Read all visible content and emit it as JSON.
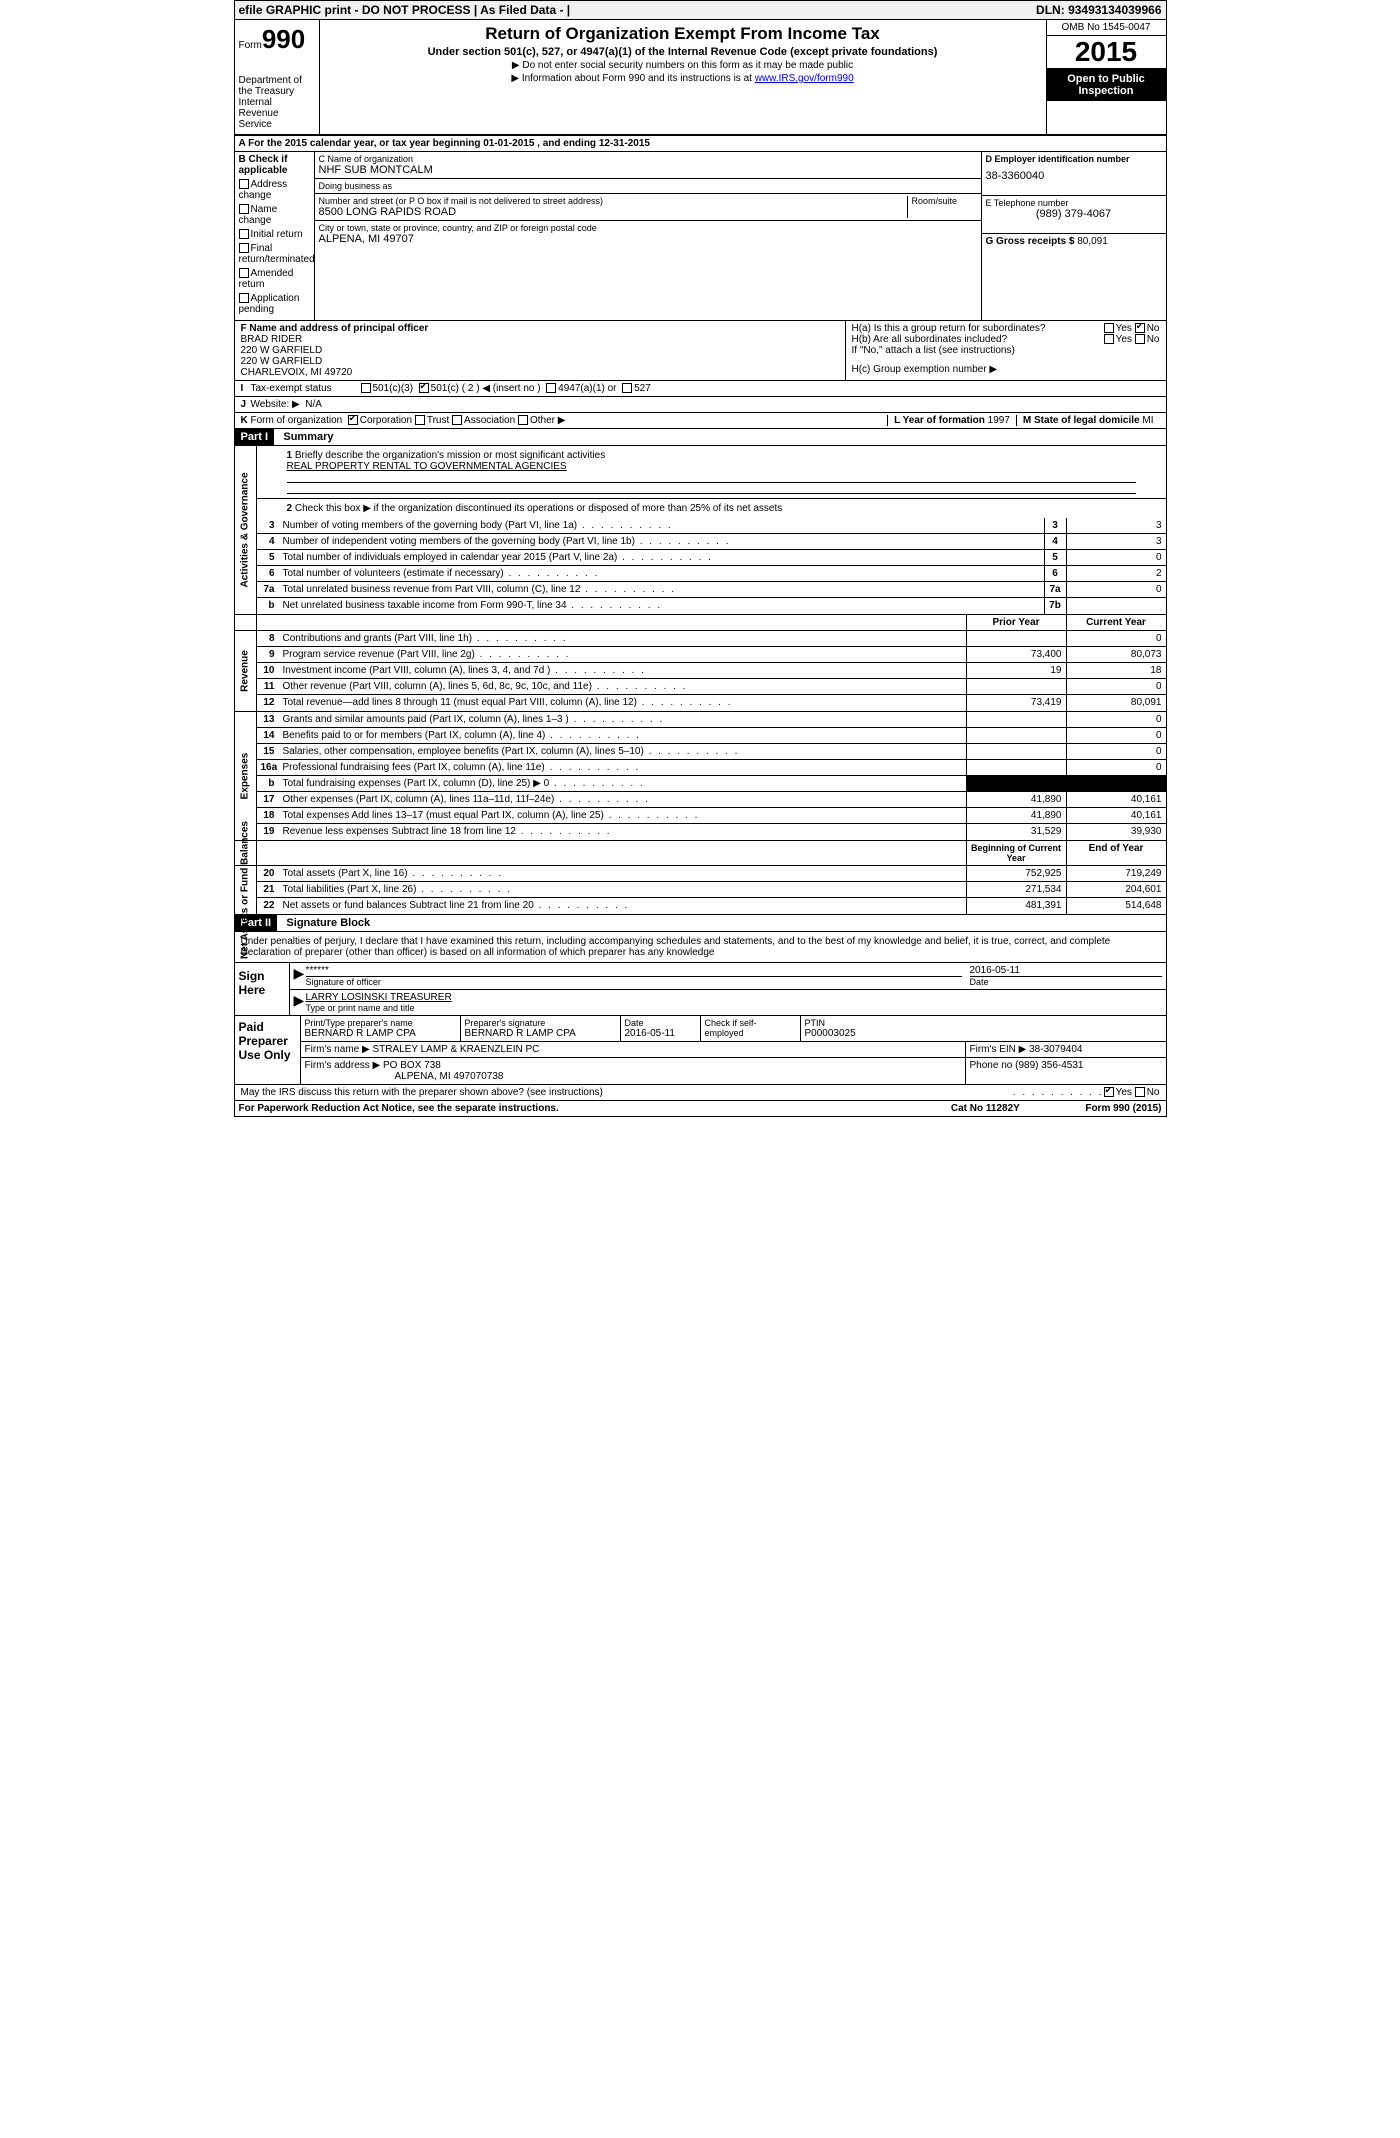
{
  "topbar": {
    "left": "efile GRAPHIC print - DO NOT PROCESS | As Filed Data - |",
    "dln_label": "DLN:",
    "dln": "93493134039966"
  },
  "header": {
    "form_word": "Form",
    "form_num": "990",
    "dept1": "Department of the Treasury",
    "dept2": "Internal Revenue Service",
    "title": "Return of Organization Exempt From Income Tax",
    "subtitle": "Under section 501(c), 527, or 4947(a)(1) of the Internal Revenue Code (except private foundations)",
    "note1": "▶ Do not enter social security numbers on this form as it may be made public",
    "note2_a": "▶ Information about Form 990 and its instructions is at ",
    "note2_link": "www.IRS.gov/form990",
    "omb": "OMB No 1545-0047",
    "year": "2015",
    "inspect": "Open to Public Inspection"
  },
  "rowA": "A  For the 2015 calendar year, or tax year beginning 01-01-2015    , and ending 12-31-2015",
  "chkB": {
    "title": "B Check if applicable",
    "items": [
      "Address change",
      "Name change",
      "Initial return",
      "Final return/terminated",
      "Amended return",
      "Application pending"
    ]
  },
  "boxC": {
    "lab_name": "C Name of organization",
    "name": "NHF SUB MONTCALM",
    "dba_lab": "Doing business as",
    "dba": "",
    "street_lab": "Number and street (or P O  box if mail is not delivered to street address)",
    "room_lab": "Room/suite",
    "street": "8500 LONG RAPIDS ROAD",
    "city_lab": "City or town, state or province, country, and ZIP or foreign postal code",
    "city": "ALPENA, MI  49707"
  },
  "boxD": {
    "lab": "D Employer identification number",
    "val": "38-3360040"
  },
  "boxE": {
    "lab": "E Telephone number",
    "val": "(989) 379-4067"
  },
  "boxG": {
    "lab": "G Gross receipts $",
    "val": "80,091"
  },
  "boxF": {
    "lab": "F   Name and address of principal officer",
    "l1": "BRAD RIDER",
    "l2": "220 W GARFIELD",
    "l3": "220 W GARFIELD",
    "l4": "CHARLEVOIX, MI  49720"
  },
  "boxH": {
    "ha": "H(a)  Is this a group return for subordinates?",
    "hb": "H(b)  Are all subordinates included?",
    "hb_note": "If \"No,\" attach a list  (see instructions)",
    "hc": "H(c)   Group exemption number ▶",
    "yes": "Yes",
    "no": "No"
  },
  "rowI": {
    "lab": "I",
    "txt": "Tax-exempt status",
    "c1": "501(c)(3)",
    "c2": "501(c) ( 2 ) ◀ (insert no )",
    "c3": "4947(a)(1) or",
    "c4": "527"
  },
  "rowJ": {
    "lab": "J",
    "txt": "Website: ▶",
    "val": "N/A"
  },
  "rowK": {
    "lab": "K",
    "txt": "Form of organization",
    "c1": "Corporation",
    "c2": "Trust",
    "c3": "Association",
    "c4": "Other ▶",
    "l_lab": "L Year of formation",
    "l_val": "1997",
    "m_lab": "M State of legal domicile",
    "m_val": "MI"
  },
  "parts": {
    "p1": "Part I",
    "p1t": "Summary",
    "p2": "Part II",
    "p2t": "Signature Block"
  },
  "vtabs": {
    "gov": "Activities & Governance",
    "rev": "Revenue",
    "exp": "Expenses",
    "net": "Net Assets or Fund Balances"
  },
  "summary": {
    "q1": "Briefly describe the organization's mission or most significant activities",
    "mission": "REAL PROPERTY RENTAL TO GOVERNMENTAL AGENCIES",
    "q2": "Check this box ▶     if the organization discontinued its operations or disposed of more than 25% of its net assets",
    "lines_gov": [
      {
        "n": "3",
        "d": "Number of voting members of the governing body (Part VI, line 1a)",
        "box": "3",
        "v": "3"
      },
      {
        "n": "4",
        "d": "Number of independent voting members of the governing body (Part VI, line 1b)",
        "box": "4",
        "v": "3"
      },
      {
        "n": "5",
        "d": "Total number of individuals employed in calendar year 2015 (Part V, line 2a)",
        "box": "5",
        "v": "0"
      },
      {
        "n": "6",
        "d": "Total number of volunteers (estimate if necessary)",
        "box": "6",
        "v": "2"
      },
      {
        "n": "7a",
        "d": "Total unrelated business revenue from Part VIII, column (C), line 12",
        "box": "7a",
        "v": "0"
      },
      {
        "n": "b",
        "d": "Net unrelated business taxable income from Form 990-T, line 34",
        "box": "7b",
        "v": ""
      }
    ],
    "col_hdr": {
      "prior": "Prior Year",
      "current": "Current Year",
      "boy": "Beginning of Current Year",
      "eoy": "End of Year"
    },
    "rev": [
      {
        "n": "8",
        "d": "Contributions and grants (Part VIII, line 1h)",
        "p": "",
        "c": "0"
      },
      {
        "n": "9",
        "d": "Program service revenue (Part VIII, line 2g)",
        "p": "73,400",
        "c": "80,073"
      },
      {
        "n": "10",
        "d": "Investment income (Part VIII, column (A), lines 3, 4, and 7d )",
        "p": "19",
        "c": "18"
      },
      {
        "n": "11",
        "d": "Other revenue (Part VIII, column (A), lines 5, 6d, 8c, 9c, 10c, and 11e)",
        "p": "",
        "c": "0"
      },
      {
        "n": "12",
        "d": "Total revenue—add lines 8 through 11 (must equal Part VIII, column (A), line 12)",
        "p": "73,419",
        "c": "80,091"
      }
    ],
    "exp": [
      {
        "n": "13",
        "d": "Grants and similar amounts paid (Part IX, column (A), lines 1–3 )",
        "p": "",
        "c": "0"
      },
      {
        "n": "14",
        "d": "Benefits paid to or for members (Part IX, column (A), line 4)",
        "p": "",
        "c": "0"
      },
      {
        "n": "15",
        "d": "Salaries, other compensation, employee benefits (Part IX, column (A), lines 5–10)",
        "p": "",
        "c": "0"
      },
      {
        "n": "16a",
        "d": "Professional fundraising fees (Part IX, column (A), line 11e)",
        "p": "",
        "c": "0"
      },
      {
        "n": "b",
        "d": "Total fundraising expenses (Part IX, column (D), line 25) ▶ 0",
        "p": "BLACK",
        "c": "BLACK"
      },
      {
        "n": "17",
        "d": "Other expenses (Part IX, column (A), lines 11a–11d, 11f–24e)",
        "p": "41,890",
        "c": "40,161"
      },
      {
        "n": "18",
        "d": "Total expenses  Add lines 13–17 (must equal Part IX, column (A), line 25)",
        "p": "41,890",
        "c": "40,161"
      },
      {
        "n": "19",
        "d": "Revenue less expenses  Subtract line 18 from line 12",
        "p": "31,529",
        "c": "39,930"
      }
    ],
    "net": [
      {
        "n": "20",
        "d": "Total assets (Part X, line 16)",
        "p": "752,925",
        "c": "719,249"
      },
      {
        "n": "21",
        "d": "Total liabilities (Part X, line 26)",
        "p": "271,534",
        "c": "204,601"
      },
      {
        "n": "22",
        "d": "Net assets or fund balances  Subtract line 21 from line 20",
        "p": "481,391",
        "c": "514,648"
      }
    ]
  },
  "sig": {
    "intro": "Under penalties of perjury, I declare that I have examined this return, including accompanying schedules and statements, and to the best of my knowledge and belief, it is true, correct, and complete  Declaration of preparer (other than officer) is based on all information of which preparer has any knowledge",
    "sign_here": "Sign Here",
    "stars": "******",
    "sig_of_officer": "Signature of officer",
    "date": "2016-05-11",
    "date_lab": "Date",
    "officer": "LARRY LOSINSKI TREASURER",
    "officer_lab": "Type or print name and title",
    "paid": "Paid Preparer Use Only",
    "prep_name_lab": "Print/Type preparer's name",
    "prep_name": "BERNARD R LAMP CPA",
    "prep_sig_lab": "Preparer's signature",
    "prep_sig": "BERNARD R LAMP CPA",
    "prep_date_lab": "Date",
    "prep_date": "2016-05-11",
    "self_emp": "Check      if self-employed",
    "ptin_lab": "PTIN",
    "ptin": "P00003025",
    "firm_name_lab": "Firm's name      ▶",
    "firm_name": "STRALEY LAMP & KRAENZLEIN PC",
    "firm_ein_lab": "Firm's EIN ▶",
    "firm_ein": "38-3079404",
    "firm_addr_lab": "Firm's address ▶",
    "firm_addr1": "PO BOX 738",
    "firm_addr2": "ALPENA, MI  497070738",
    "phone_lab": "Phone no",
    "phone": "(989) 356-4531",
    "discuss": "May the IRS discuss this return with the preparer shown above? (see instructions)",
    "discuss_yes": "Yes",
    "discuss_no": "No"
  },
  "footer": {
    "l": "For Paperwork Reduction Act Notice, see the separate instructions.",
    "m": "Cat No  11282Y",
    "r": "Form 990 (2015)"
  }
}
